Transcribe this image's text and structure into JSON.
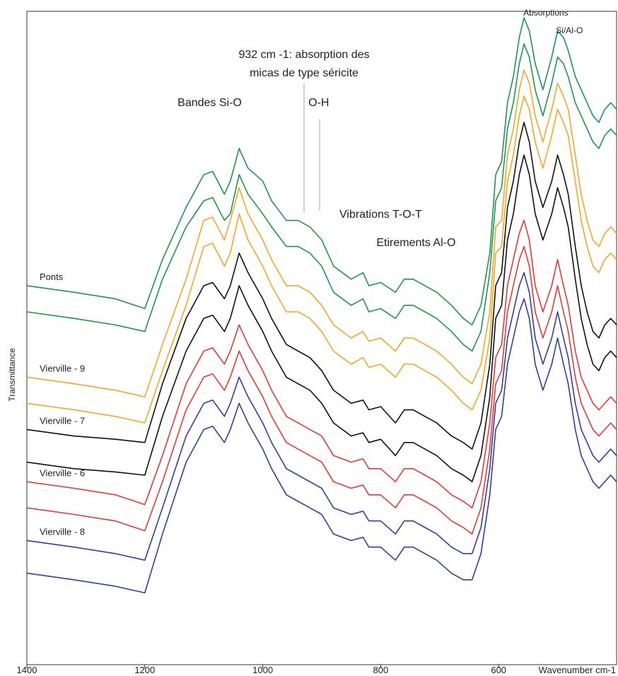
{
  "chart_data": {
    "type": "line",
    "title": "",
    "xlabel": "Wavenumber cm-1",
    "ylabel": "Transmittance",
    "x_reversed": true,
    "xlim": [
      1400,
      400
    ],
    "ylim": [
      0,
      100
    ],
    "x_ticks": [
      "1400",
      "1200",
      "1000",
      "800",
      "600"
    ],
    "grid": false,
    "x": [
      1400,
      1320,
      1250,
      1200,
      1170,
      1130,
      1100,
      1085,
      1065,
      1055,
      1040,
      1025,
      1000,
      985,
      960,
      940,
      920,
      900,
      880,
      850,
      830,
      820,
      800,
      775,
      760,
      745,
      725,
      705,
      680,
      660,
      645,
      630,
      615,
      605,
      595,
      585,
      575,
      565,
      557,
      548,
      538,
      525,
      510,
      500,
      490,
      482,
      470,
      460,
      450,
      440,
      430,
      420,
      410,
      400
    ],
    "series_colors": [
      "#1a9850",
      "#f5a623",
      "#111111",
      "#e53935",
      "#2e3f9e"
    ],
    "series": [
      {
        "name": "Ponts",
        "values": [
          58,
          57,
          56,
          54.5,
          62,
          70,
          75,
          75.5,
          72,
          74,
          79,
          76,
          74,
          71,
          68,
          68,
          67,
          65,
          61,
          59,
          60,
          58,
          58.5,
          57,
          59,
          59,
          58,
          57,
          55,
          53,
          52,
          55,
          63,
          75,
          77,
          86,
          90,
          96,
          99,
          97,
          92,
          88,
          93,
          97,
          96,
          94,
          90,
          88,
          86,
          84,
          83,
          85,
          86,
          85
        ]
      },
      {
        "name": "Ponts",
        "values": [
          54,
          53,
          52,
          51,
          59,
          67,
          71,
          71.5,
          68,
          69,
          75,
          72,
          69,
          67,
          64,
          64,
          63,
          61,
          57,
          55,
          56,
          54,
          54.5,
          53,
          55,
          55,
          54,
          53,
          51,
          49,
          48,
          51,
          60,
          71,
          73,
          82,
          86,
          92,
          95,
          93,
          88,
          84,
          89,
          93,
          92,
          90,
          86,
          84,
          82,
          80,
          79,
          81,
          82,
          81
        ]
      },
      {
        "name": "Vierville - 9",
        "values": [
          44,
          43,
          42,
          41,
          49,
          59,
          68,
          68.5,
          65,
          68,
          73,
          69,
          65,
          62,
          58,
          58,
          57,
          55,
          52,
          50,
          51,
          49.5,
          50,
          48,
          50,
          50,
          49,
          48,
          46,
          44,
          43,
          46,
          54,
          67,
          68,
          78,
          82,
          88,
          91,
          89,
          84,
          80,
          85,
          89,
          87,
          85,
          78,
          72,
          68,
          65,
          64,
          66,
          67,
          66
        ]
      },
      {
        "name": "Vierville - 9",
        "values": [
          40,
          39,
          38,
          37,
          45,
          55,
          64,
          64.5,
          61,
          63,
          69,
          65,
          61,
          58,
          54,
          54,
          53,
          51,
          48,
          46,
          47,
          45.5,
          46,
          44,
          46,
          46,
          45,
          44,
          42,
          40,
          39,
          42,
          50,
          63,
          64,
          74,
          78,
          84,
          87,
          85,
          80,
          76,
          81,
          85,
          83,
          81,
          74,
          68,
          64,
          61,
          60,
          62,
          63,
          62
        ]
      },
      {
        "name": "Vierville - 7",
        "values": [
          36,
          35,
          34.5,
          34,
          43,
          53,
          58,
          58.5,
          56,
          58,
          63,
          60,
          56,
          53,
          49,
          48,
          47,
          45,
          42,
          40,
          40.5,
          39,
          39.5,
          37,
          39,
          39,
          38,
          37,
          35,
          34,
          33,
          37,
          46,
          58,
          60,
          70,
          74,
          80,
          83,
          80,
          74,
          70,
          74,
          78,
          75,
          72,
          64,
          58,
          54,
          51,
          50,
          52,
          53,
          52
        ]
      },
      {
        "name": "Vierville - 7",
        "values": [
          31,
          30,
          29.5,
          29,
          38,
          48,
          53,
          53.5,
          51,
          53,
          58,
          55,
          51,
          48,
          44,
          43,
          42,
          40,
          37,
          35,
          35.5,
          34,
          34.5,
          32,
          34,
          34,
          33,
          32,
          30,
          29,
          28,
          32,
          41,
          53,
          55,
          65,
          69,
          75,
          78,
          75,
          69,
          65,
          69,
          73,
          70,
          67,
          59,
          53,
          49,
          46,
          45,
          47,
          48,
          47
        ]
      },
      {
        "name": "Vierville - 6",
        "values": [
          28,
          27,
          26,
          24.5,
          32,
          43,
          48,
          48.5,
          46,
          48,
          52,
          49,
          45,
          42,
          38,
          37,
          36,
          35,
          32,
          31,
          31.5,
          30,
          30,
          28,
          30,
          30,
          29,
          28,
          26,
          25,
          24,
          28,
          37,
          47,
          49,
          58,
          62,
          66,
          68,
          65,
          58,
          54,
          58,
          62,
          58,
          55,
          48,
          44,
          42,
          40,
          39,
          40,
          41,
          40
        ]
      },
      {
        "name": "Vierville - 6",
        "values": [
          24,
          23,
          22,
          20.5,
          28,
          39,
          44,
          44.5,
          42,
          44,
          48,
          45,
          41,
          38,
          34,
          33,
          32,
          31,
          28,
          27,
          27.5,
          26,
          26,
          24,
          26,
          26,
          25,
          24,
          22,
          21,
          20,
          24,
          33,
          43,
          45,
          54,
          58,
          62,
          64,
          61,
          54,
          50,
          54,
          58,
          54,
          51,
          44,
          40,
          38,
          36,
          35,
          36,
          37,
          36
        ]
      },
      {
        "name": "Vierville - 8",
        "values": [
          19,
          18,
          17,
          16,
          24,
          35,
          40,
          40.5,
          38,
          40,
          44,
          41,
          37,
          34,
          30,
          29,
          28,
          27,
          24,
          23,
          23.5,
          22,
          22,
          20,
          22,
          22,
          21,
          20,
          18,
          17,
          17,
          21,
          30,
          40,
          42,
          50,
          54,
          58,
          60,
          57,
          50,
          46,
          50,
          54,
          50,
          47,
          40,
          36,
          34,
          32,
          31,
          32,
          33,
          32
        ]
      },
      {
        "name": "Vierville - 8",
        "values": [
          14,
          13,
          12,
          11,
          20,
          31,
          36,
          36.5,
          34,
          36,
          40,
          37,
          33,
          30,
          26,
          25,
          24,
          23,
          20,
          19,
          19.5,
          18,
          18,
          16,
          18,
          18,
          17,
          16,
          14,
          13,
          13,
          17,
          26,
          36,
          38,
          46,
          50,
          54,
          56,
          53,
          46,
          42,
          46,
          50,
          46,
          43,
          36,
          32,
          30,
          28,
          27,
          28,
          29,
          28
        ]
      }
    ],
    "series_labels": [
      "Ponts",
      "Vierville - 9",
      "Vierville - 7",
      "Vierville - 6",
      "Vierville - 8"
    ],
    "annotations": [
      {
        "text": "Absorptions",
        "x": 520
      },
      {
        "text": "Si/Al-O",
        "x": 480
      },
      {
        "text": "932 cm -1: absorption des",
        "x": 930
      },
      {
        "text": "micas de type séricite",
        "x": 930
      },
      {
        "text": "Bandes Si-O",
        "x": 1090
      },
      {
        "text": "O-H",
        "x": 905
      },
      {
        "text": "Vibrations T-O-T",
        "x": 800
      },
      {
        "text": "Etirements Al-O",
        "x": 740
      }
    ]
  }
}
